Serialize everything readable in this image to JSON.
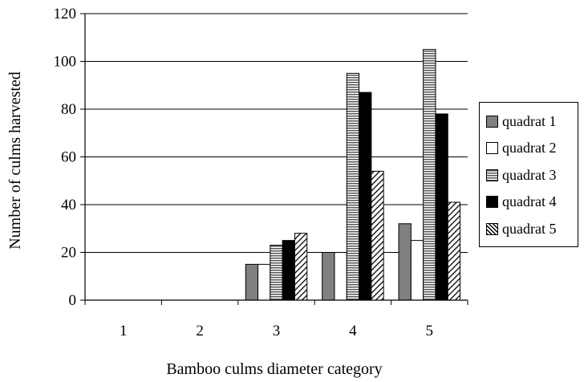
{
  "chart_data": {
    "type": "bar",
    "title": "",
    "xlabel": "Bamboo culms diameter category",
    "ylabel": "Number of culms  harvested",
    "categories": [
      "1",
      "2",
      "3",
      "4",
      "5"
    ],
    "ylim": [
      0,
      120
    ],
    "yticks": [
      0,
      20,
      40,
      60,
      80,
      100,
      120
    ],
    "grid": true,
    "legend_position": "right",
    "series": [
      {
        "name": "quadrat 1",
        "values": [
          0,
          0,
          15,
          20,
          32
        ],
        "fill": "#808080",
        "pattern": "solid"
      },
      {
        "name": "quadrat 2",
        "values": [
          0,
          0,
          15,
          20,
          25
        ],
        "fill": "#ffffff",
        "pattern": "solid"
      },
      {
        "name": "quadrat 3",
        "values": [
          0,
          0,
          23,
          95,
          105
        ],
        "fill": "#c8c8c8",
        "pattern": "horizontal-stripes"
      },
      {
        "name": "quadrat 4",
        "values": [
          0,
          0,
          25,
          87,
          78
        ],
        "fill": "#000000",
        "pattern": "solid"
      },
      {
        "name": "quadrat 5",
        "values": [
          0,
          0,
          28,
          54,
          41
        ],
        "fill": "#ffffff",
        "pattern": "diagonal-stripes"
      }
    ]
  }
}
